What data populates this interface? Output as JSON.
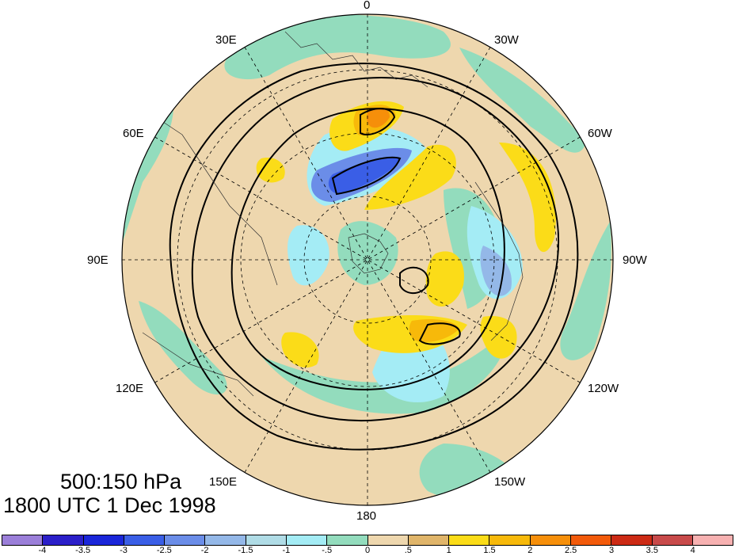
{
  "title": {
    "line1": "500:150 hPa",
    "line2": "1800 UTC 1 Dec 1998"
  },
  "longitude_labels": {
    "lon_0": "0",
    "lon_30w": "30W",
    "lon_60w": "60W",
    "lon_90w": "90W",
    "lon_120w": "120W",
    "lon_150w": "150W",
    "lon_180": "180",
    "lon_150e": "150E",
    "lon_120e": "120E",
    "lon_90e": "90E",
    "lon_60e": "60E",
    "lon_30e": "30E"
  },
  "colorbar": {
    "colors": [
      "#9b7fd9",
      "#2b1fc9",
      "#1a26d9",
      "#3a5ee6",
      "#6b8de8",
      "#94b8e8",
      "#b0dce6",
      "#a4ecf5",
      "#93dcbd",
      "#eed7ae",
      "#e0b56a",
      "#fbdc18",
      "#f7b90a",
      "#f68f0a",
      "#f25a0a",
      "#cc2a14",
      "#c84a4a",
      "#f7b1b1"
    ],
    "labels": [
      "-4",
      "-3.5",
      "-3",
      "-2.5",
      "-2",
      "-1.5",
      "-1",
      "-.5",
      "0",
      ".5",
      "1",
      "1.5",
      "2",
      "2.5",
      "3",
      "3.5",
      "4"
    ]
  }
}
